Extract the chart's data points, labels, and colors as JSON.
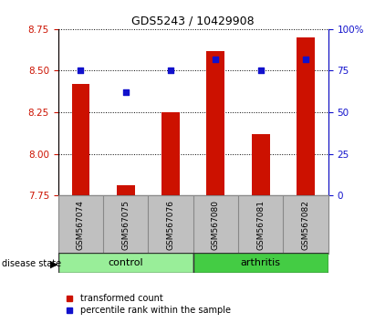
{
  "title": "GDS5243 / 10429908",
  "samples": [
    "GSM567074",
    "GSM567075",
    "GSM567076",
    "GSM567080",
    "GSM567081",
    "GSM567082"
  ],
  "red_values": [
    8.42,
    7.81,
    8.25,
    8.62,
    8.12,
    8.7
  ],
  "blue_values": [
    75,
    62,
    75,
    82,
    75,
    82
  ],
  "ylim_left": [
    7.75,
    8.75
  ],
  "ylim_right": [
    0,
    100
  ],
  "yticks_left": [
    7.75,
    8.0,
    8.25,
    8.5,
    8.75
  ],
  "yticks_right": [
    0,
    25,
    50,
    75,
    100
  ],
  "bar_width": 0.4,
  "bar_color": "#cc1100",
  "dot_color": "#1111cc",
  "bg_color": "#ffffff",
  "xlabel_area_color": "#c0c0c0",
  "control_color": "#99ee99",
  "arthritis_color": "#44cc44",
  "label_color_left": "#cc1100",
  "label_color_right": "#1111cc",
  "baseline": 7.75,
  "title_fontsize": 9,
  "tick_fontsize": 7.5,
  "sample_fontsize": 6.5,
  "group_fontsize": 8,
  "legend_fontsize": 7
}
